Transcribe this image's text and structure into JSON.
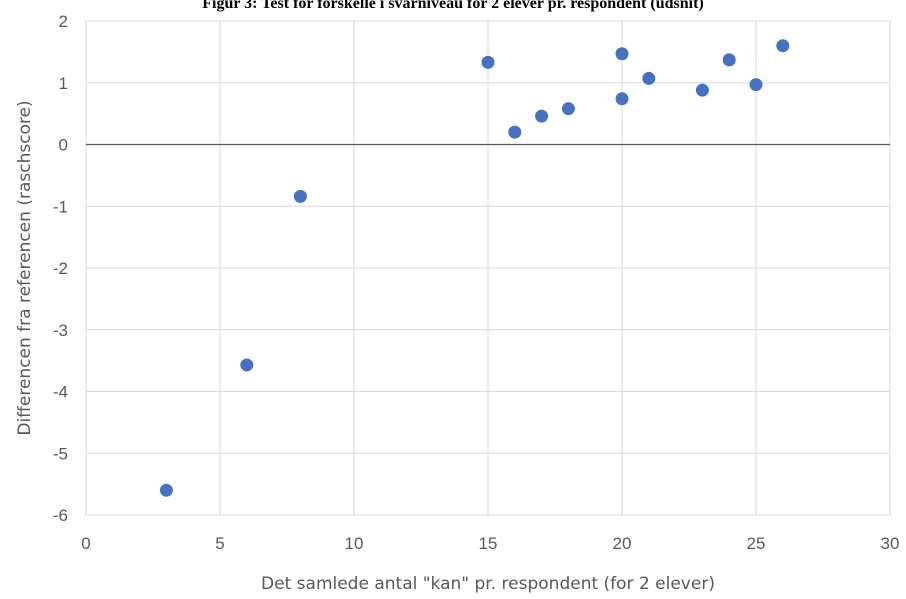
{
  "chart_data": {
    "type": "scatter",
    "title": "Figur 3: Test for forskelle i svarniveau for 2 elever pr. respondent (udsnit)",
    "xlabel": "Det samlede antal \"kan\" pr. respondent (for 2 elever)",
    "ylabel": "Differencen fra referencen (raschscore)",
    "xlim": [
      0,
      30
    ],
    "ylim": [
      -6,
      2
    ],
    "x_ticks": [
      0,
      5,
      10,
      15,
      20,
      25,
      30
    ],
    "y_ticks": [
      -6,
      -5,
      -4,
      -3,
      -2,
      -1,
      0,
      1,
      2
    ],
    "grid": true,
    "zero_line": true,
    "marker_color": "#4472c4",
    "gridline_color": "#d9d9d9",
    "points": [
      {
        "x": 3,
        "y": -5.6
      },
      {
        "x": 6,
        "y": -3.57
      },
      {
        "x": 8,
        "y": -0.84
      },
      {
        "x": 15,
        "y": 1.33
      },
      {
        "x": 16,
        "y": 0.2
      },
      {
        "x": 17,
        "y": 0.46
      },
      {
        "x": 18,
        "y": 0.58
      },
      {
        "x": 20,
        "y": 1.47
      },
      {
        "x": 20,
        "y": 0.74
      },
      {
        "x": 21,
        "y": 1.07
      },
      {
        "x": 23,
        "y": 0.88
      },
      {
        "x": 24,
        "y": 1.37
      },
      {
        "x": 25,
        "y": 0.97
      },
      {
        "x": 26,
        "y": 1.6
      }
    ]
  }
}
